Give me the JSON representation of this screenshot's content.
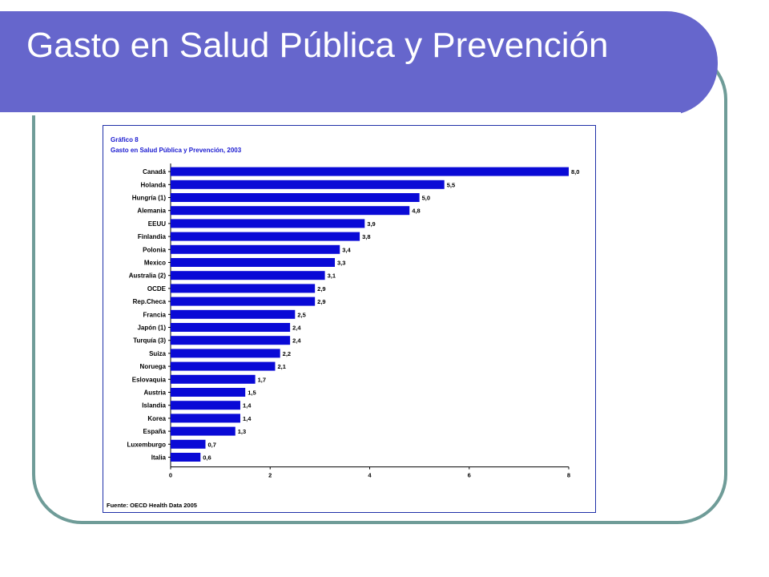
{
  "slide": {
    "title": "Gasto en Salud Pública y Prevención",
    "colors": {
      "title_band": "#6666cc",
      "frame": "#6f9c98",
      "bars": "#0a0ad6",
      "caption": "#1a1ad0"
    }
  },
  "chart_data": {
    "type": "bar",
    "orientation": "horizontal",
    "caption_line1": "Gráfico 8",
    "caption_line2": "Gasto en Salud Pública y Prevención, 2003",
    "categories": [
      "Canadá",
      "Holanda",
      "Hungría (1)",
      "Alemania",
      "EEUU",
      "Finlandia",
      "Polonia",
      "Mexico",
      "Australia (2)",
      "OCDE",
      "Rep.Checa",
      "Francia",
      "Japón (1)",
      "Turquía (3)",
      "Suiza",
      "Noruega",
      "Eslovaquia",
      "Austria",
      "Islandia",
      "Korea",
      "España",
      "Luxemburgo",
      "Italia"
    ],
    "values": [
      8.0,
      5.5,
      5.0,
      4.8,
      3.9,
      3.8,
      3.4,
      3.3,
      3.1,
      2.9,
      2.9,
      2.5,
      2.4,
      2.4,
      2.2,
      2.1,
      1.7,
      1.5,
      1.4,
      1.4,
      1.3,
      0.7,
      0.6
    ],
    "value_labels": [
      "8,0",
      "5,5",
      "5,0",
      "4,8",
      "3,9",
      "3,8",
      "3,4",
      "3,3",
      "3,1",
      "2,9",
      "2,9",
      "2,5",
      "2,4",
      "2,4",
      "2,2",
      "2,1",
      "1,7",
      "1,5",
      "1,4",
      "1,4",
      "1,3",
      "0,7",
      "0,6"
    ],
    "xlim": [
      0,
      8
    ],
    "xticks": [
      0,
      2,
      4,
      6,
      8
    ],
    "xtick_labels": [
      "0",
      "2",
      "4",
      "6",
      "8"
    ],
    "grid": false,
    "source": "Fuente: OECD Health Data 2005"
  }
}
